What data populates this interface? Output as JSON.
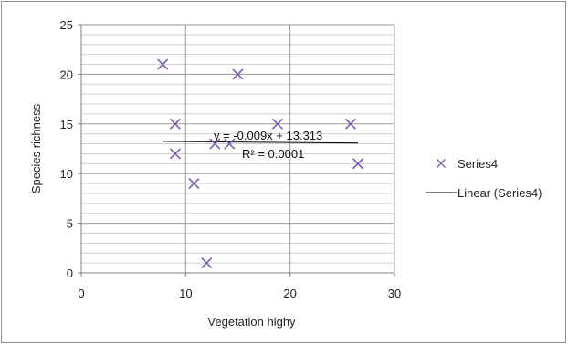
{
  "chart_data": {
    "type": "scatter",
    "xlabel": "Vegetation highy",
    "ylabel": "Species richness",
    "xlim": [
      0,
      30
    ],
    "ylim": [
      0,
      25
    ],
    "x_ticks": [
      "0",
      "10",
      "20",
      "30"
    ],
    "y_ticks": [
      "0",
      "5",
      "10",
      "15",
      "20",
      "25"
    ],
    "x_major_step": 10,
    "y_major_step": 5,
    "y_minor_step": 1,
    "grid": true,
    "legend_position": "right",
    "series": [
      {
        "name": "Series4",
        "marker": "x",
        "color": "#7a5ea8",
        "points": [
          {
            "x": 7.8,
            "y": 21
          },
          {
            "x": 9.0,
            "y": 15
          },
          {
            "x": 9.0,
            "y": 12
          },
          {
            "x": 10.8,
            "y": 9
          },
          {
            "x": 12.0,
            "y": 1
          },
          {
            "x": 12.8,
            "y": 13
          },
          {
            "x": 14.2,
            "y": 13
          },
          {
            "x": 15.0,
            "y": 20
          },
          {
            "x": 18.8,
            "y": 15
          },
          {
            "x": 25.8,
            "y": 15
          },
          {
            "x": 26.5,
            "y": 11
          }
        ]
      }
    ],
    "trendline": {
      "name": "Linear (Series4)",
      "color": "#000000",
      "slope": -0.009,
      "intercept": 13.313,
      "x_range": [
        7.8,
        26.5
      ],
      "equation": "y = -0.009x + 13.313",
      "r_squared": "R² = 0.0001"
    }
  }
}
